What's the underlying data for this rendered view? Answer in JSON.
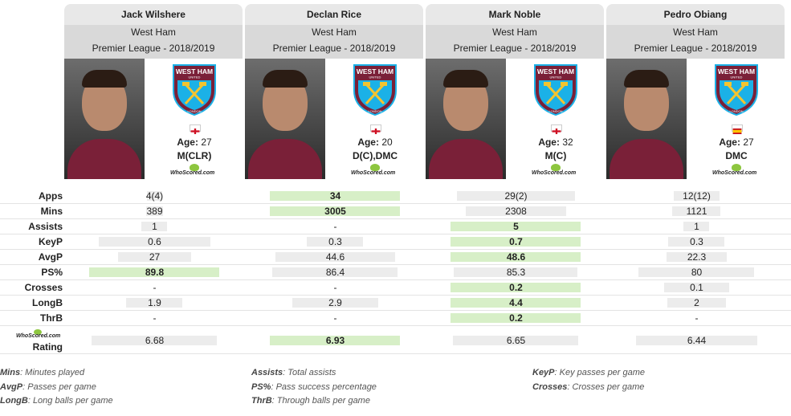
{
  "players": [
    {
      "name": "Jack Wilshere",
      "team": "West Ham",
      "league": "Premier League - 2018/2019",
      "age_label": "Age:",
      "age": "27",
      "position": "M(CLR)",
      "flag": "england-flag-icon"
    },
    {
      "name": "Declan Rice",
      "team": "West Ham",
      "league": "Premier League - 2018/2019",
      "age_label": "Age:",
      "age": "20",
      "position": "D(C),DMC",
      "flag": "england-flag-icon"
    },
    {
      "name": "Mark Noble",
      "team": "West Ham",
      "league": "Premier League - 2018/2019",
      "age_label": "Age:",
      "age": "32",
      "position": "M(C)",
      "flag": "england-flag-icon"
    },
    {
      "name": "Pedro Obiang",
      "team": "West Ham",
      "league": "Premier League - 2018/2019",
      "age_label": "Age:",
      "age": "27",
      "position": "DMC",
      "flag": "spain-flag-icon"
    }
  ],
  "crest": {
    "line1": "WEST HAM",
    "line2": "UNITED",
    "line3": "LONDON"
  },
  "whoscored_logo": "WhoScored.com",
  "stats": [
    {
      "label": "Apps",
      "values": [
        "4(4)",
        "34",
        "29(2)",
        "12(12)"
      ],
      "highlight": 1,
      "fills": [
        0.12,
        1.0,
        0.91,
        0.35
      ]
    },
    {
      "label": "Mins",
      "values": [
        "389",
        "3005",
        "2308",
        "1121"
      ],
      "highlight": 1,
      "fills": [
        0.13,
        1.0,
        0.77,
        0.37
      ]
    },
    {
      "label": "Assists",
      "values": [
        "1",
        "-",
        "5",
        "1"
      ],
      "highlight": 2,
      "fills": [
        0.2,
        0.0,
        1.0,
        0.2
      ]
    },
    {
      "label": "KeyP",
      "values": [
        "0.6",
        "0.3",
        "0.7",
        "0.3"
      ],
      "highlight": 2,
      "fills": [
        0.86,
        0.43,
        1.0,
        0.43
      ]
    },
    {
      "label": "AvgP",
      "values": [
        "27",
        "44.6",
        "48.6",
        "22.3"
      ],
      "highlight": 2,
      "fills": [
        0.56,
        0.92,
        1.0,
        0.46
      ]
    },
    {
      "label": "PS%",
      "values": [
        "89.8",
        "86.4",
        "85.3",
        "80"
      ],
      "highlight": 0,
      "fills": [
        1.0,
        0.96,
        0.95,
        0.89
      ]
    },
    {
      "label": "Crosses",
      "values": [
        "-",
        "-",
        "0.2",
        "0.1"
      ],
      "highlight": 2,
      "fills": [
        0.0,
        0.0,
        1.0,
        0.5
      ]
    },
    {
      "label": "LongB",
      "values": [
        "1.9",
        "2.9",
        "4.4",
        "2"
      ],
      "highlight": 2,
      "fills": [
        0.43,
        0.66,
        1.0,
        0.45
      ]
    },
    {
      "label": "ThrB",
      "values": [
        "-",
        "-",
        "0.2",
        "-"
      ],
      "highlight": 2,
      "fills": [
        0.0,
        0.0,
        1.0,
        0.0
      ]
    },
    {
      "label": "Rating",
      "values": [
        "6.68",
        "6.93",
        "6.65",
        "6.44"
      ],
      "highlight": 1,
      "fills": [
        0.96,
        1.0,
        0.96,
        0.93
      ]
    }
  ],
  "legend": [
    {
      "key": "Mins",
      "desc": ": Minutes played"
    },
    {
      "key": "Assists",
      "desc": ": Total assists"
    },
    {
      "key": "KeyP",
      "desc": ": Key passes per game"
    },
    {
      "key": "AvgP",
      "desc": ": Passes per game"
    },
    {
      "key": "PS%",
      "desc": ": Pass success percentage"
    },
    {
      "key": "Crosses",
      "desc": ": Crosses per game"
    },
    {
      "key": "LongB",
      "desc": ": Long balls per game"
    },
    {
      "key": "ThrB",
      "desc": ": Through balls per game"
    }
  ],
  "colors": {
    "highlight": "#d7efc7",
    "bar": "#ececec",
    "header": "#e8e8e8",
    "subheader": "#d9d9d9",
    "claret": "#7a2038",
    "blue": "#1bb1e7"
  }
}
